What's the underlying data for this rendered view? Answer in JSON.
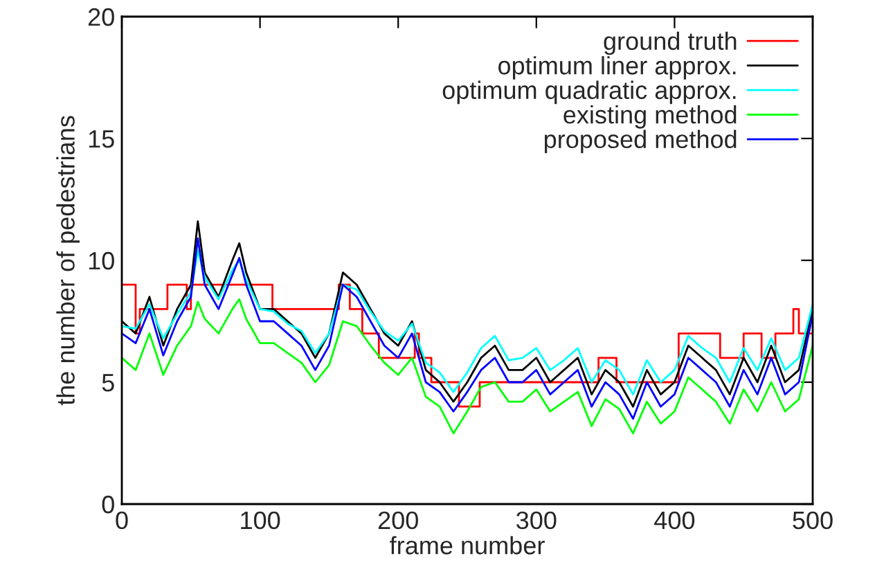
{
  "chart_data": {
    "type": "line",
    "xlabel": "frame number",
    "ylabel": "the number of pedestrians",
    "xlim": [
      0,
      500
    ],
    "ylim": [
      0,
      20
    ],
    "xticks": [
      0,
      100,
      200,
      300,
      400,
      500
    ],
    "yticks": [
      0,
      5,
      10,
      15,
      20
    ],
    "grid": false,
    "legend": "top right",
    "marker": "none",
    "line_style": "solid",
    "series": [
      {
        "name": "ground truth",
        "type": "step",
        "color": "#ff0000",
        "x": [
          0,
          10,
          13,
          33,
          47,
          50,
          109,
          157,
          165,
          174,
          186,
          212,
          215,
          224,
          244,
          259,
          345,
          358,
          403,
          433,
          450,
          463,
          473,
          486,
          490,
          500
        ],
        "values": [
          9,
          7,
          8,
          9,
          8,
          9,
          8,
          9,
          8,
          7,
          6,
          7,
          6,
          5,
          4,
          5,
          6,
          5,
          7,
          6,
          7,
          6,
          7,
          8,
          7,
          7
        ]
      },
      {
        "name": "optimum liner approx.",
        "color": "#000000",
        "x": [
          0,
          10,
          20,
          30,
          40,
          50,
          55,
          60,
          70,
          80,
          85,
          90,
          100,
          110,
          120,
          130,
          140,
          150,
          160,
          170,
          180,
          190,
          200,
          210,
          220,
          230,
          240,
          250,
          260,
          270,
          280,
          290,
          300,
          310,
          320,
          330,
          340,
          350,
          360,
          370,
          380,
          390,
          400,
          410,
          420,
          430,
          440,
          450,
          460,
          470,
          480,
          490,
          500
        ],
        "values": [
          7.5,
          7,
          8.5,
          6.5,
          8,
          9,
          11.6,
          9.5,
          8.5,
          10,
          10.7,
          9.5,
          8,
          8,
          7.5,
          7,
          6,
          7,
          9.5,
          9,
          8,
          7,
          6.5,
          7.5,
          5.5,
          5,
          4.2,
          5,
          6,
          6.5,
          5.5,
          5.5,
          6,
          5,
          5.5,
          6,
          4.5,
          5.5,
          5,
          4,
          5.5,
          4.5,
          5,
          6.5,
          6,
          5.5,
          4.5,
          6,
          5,
          6.5,
          5,
          5.5,
          8
        ]
      },
      {
        "name": "optimum quadratic approx.",
        "color": "#00ffff",
        "x": [
          0,
          10,
          20,
          30,
          40,
          50,
          55,
          60,
          70,
          80,
          85,
          90,
          100,
          110,
          120,
          130,
          140,
          150,
          160,
          170,
          180,
          190,
          200,
          210,
          220,
          230,
          240,
          250,
          260,
          270,
          280,
          290,
          300,
          310,
          320,
          330,
          340,
          350,
          360,
          370,
          380,
          390,
          400,
          410,
          420,
          430,
          440,
          450,
          460,
          470,
          480,
          490,
          500
        ],
        "values": [
          7.3,
          7.2,
          8.2,
          6.8,
          7.8,
          8.7,
          10.4,
          9.3,
          8.4,
          9.6,
          10,
          9.2,
          8,
          7.9,
          7.4,
          7.1,
          6.2,
          7,
          9,
          8.8,
          7.9,
          7.1,
          6.7,
          7.4,
          5.8,
          5.4,
          4.6,
          5.4,
          6.4,
          6.9,
          5.9,
          6,
          6.4,
          5.5,
          5.9,
          6.4,
          5,
          5.9,
          5.5,
          4.5,
          5.9,
          5,
          5.5,
          6.9,
          6.4,
          6,
          5,
          6.4,
          5.5,
          6.8,
          5.5,
          6,
          8.2
        ]
      },
      {
        "name": "existing method",
        "color": "#00ff00",
        "x": [
          0,
          10,
          20,
          30,
          40,
          50,
          55,
          60,
          70,
          80,
          85,
          90,
          100,
          110,
          120,
          130,
          140,
          150,
          160,
          170,
          180,
          190,
          200,
          210,
          220,
          230,
          240,
          250,
          260,
          270,
          280,
          290,
          300,
          310,
          320,
          330,
          340,
          350,
          360,
          370,
          380,
          390,
          400,
          410,
          420,
          430,
          440,
          450,
          460,
          470,
          480,
          490,
          500
        ],
        "values": [
          6,
          5.5,
          7,
          5.3,
          6.5,
          7.3,
          8.3,
          7.6,
          7,
          8,
          8.4,
          7.6,
          6.6,
          6.6,
          6.2,
          5.8,
          5,
          5.7,
          7.5,
          7.3,
          6.5,
          5.8,
          5.3,
          6,
          4.4,
          4,
          2.9,
          3.8,
          4.8,
          5,
          4.2,
          4.2,
          4.7,
          3.8,
          4.2,
          4.6,
          3.2,
          4.3,
          3.9,
          2.9,
          4.2,
          3.3,
          3.8,
          5.2,
          4.7,
          4.2,
          3.3,
          4.7,
          3.8,
          5,
          3.8,
          4.3,
          6.5
        ]
      },
      {
        "name": "proposed method",
        "color": "#0000ff",
        "x": [
          0,
          10,
          20,
          30,
          40,
          50,
          55,
          60,
          70,
          80,
          85,
          90,
          100,
          110,
          120,
          130,
          140,
          150,
          160,
          170,
          180,
          190,
          200,
          210,
          220,
          230,
          240,
          250,
          260,
          270,
          280,
          290,
          300,
          310,
          320,
          330,
          340,
          350,
          360,
          370,
          380,
          390,
          400,
          410,
          420,
          430,
          440,
          450,
          460,
          470,
          480,
          490,
          500
        ],
        "values": [
          7,
          6.6,
          8,
          6.1,
          7.5,
          8.5,
          10.9,
          9,
          8,
          9.4,
          10.1,
          9,
          7.5,
          7.5,
          7,
          6.5,
          5.5,
          6.5,
          9,
          8.5,
          7.5,
          6.5,
          6,
          7,
          5,
          4.6,
          3.8,
          4.6,
          5.5,
          6,
          5,
          5,
          5.5,
          4.5,
          5,
          5.5,
          4,
          5,
          4.5,
          3.5,
          5,
          4,
          4.5,
          6,
          5.5,
          5,
          4,
          5.5,
          4.5,
          6,
          4.5,
          5,
          7.8
        ]
      }
    ]
  }
}
